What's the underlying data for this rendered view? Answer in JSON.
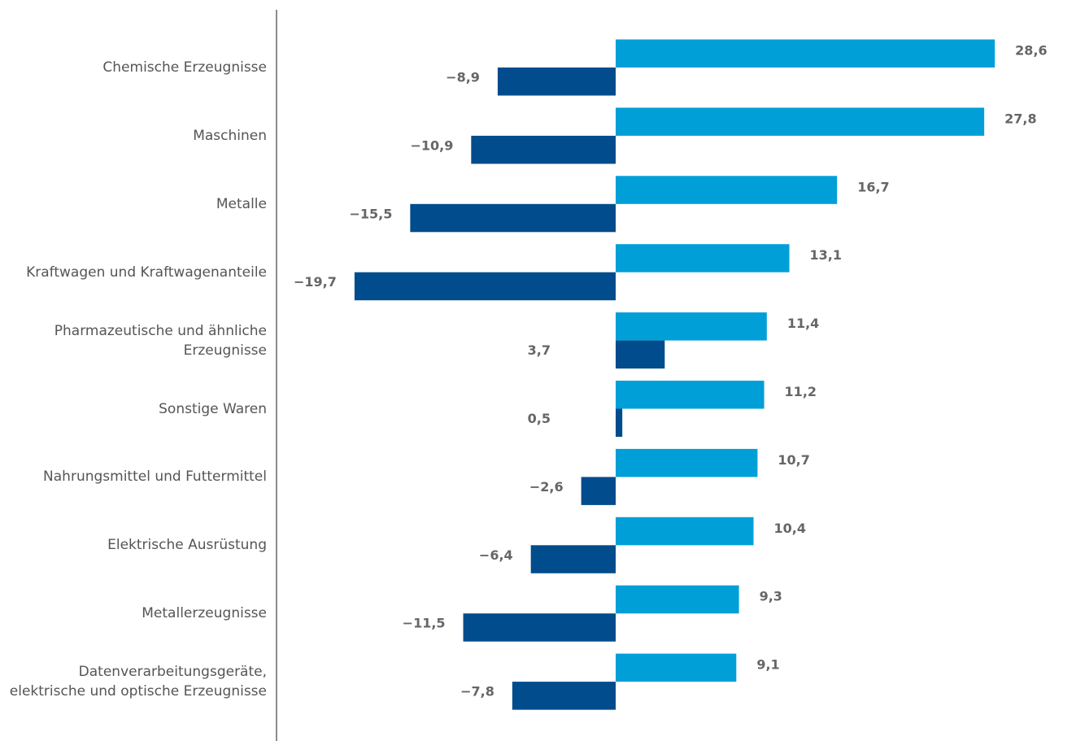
{
  "chart_data": {
    "type": "bar",
    "orientation": "horizontal",
    "categories": [
      "Chemische Erzeugnisse",
      "Maschinen",
      "Metalle",
      "Kraftwagen und Kraftwagenanteile",
      "Pharmazeutische und ähnliche\nErzeugnisse",
      "Sonstige Waren",
      "Nahrungsmittel und Futtermittel",
      "Elektrische Ausrüstung",
      "Metallerzeugnisse",
      "Datenverarbeitungsgeräte,\nelektrische und optische Erzeugnisse"
    ],
    "series": [
      {
        "color": "#009fd8",
        "values": [
          28.6,
          27.8,
          16.7,
          13.1,
          11.4,
          11.2,
          10.7,
          10.4,
          9.3,
          9.1
        ],
        "value_labels": [
          "28,6",
          "27,8",
          "16,7",
          "13,1",
          "11,4",
          "11,2",
          "10,7",
          "10,4",
          "9,3",
          "9,1"
        ]
      },
      {
        "color": "#004c8c",
        "values": [
          -8.9,
          -10.9,
          -15.5,
          -19.7,
          3.7,
          0.5,
          -2.6,
          -6.4,
          -11.5,
          -7.8
        ],
        "value_labels": [
          "−8,9",
          "−10,9",
          "−15,5",
          "−19,7",
          "3,7",
          "0,5",
          "−2,6",
          "−6,4",
          "−11,5",
          "−7,8"
        ]
      }
    ]
  }
}
